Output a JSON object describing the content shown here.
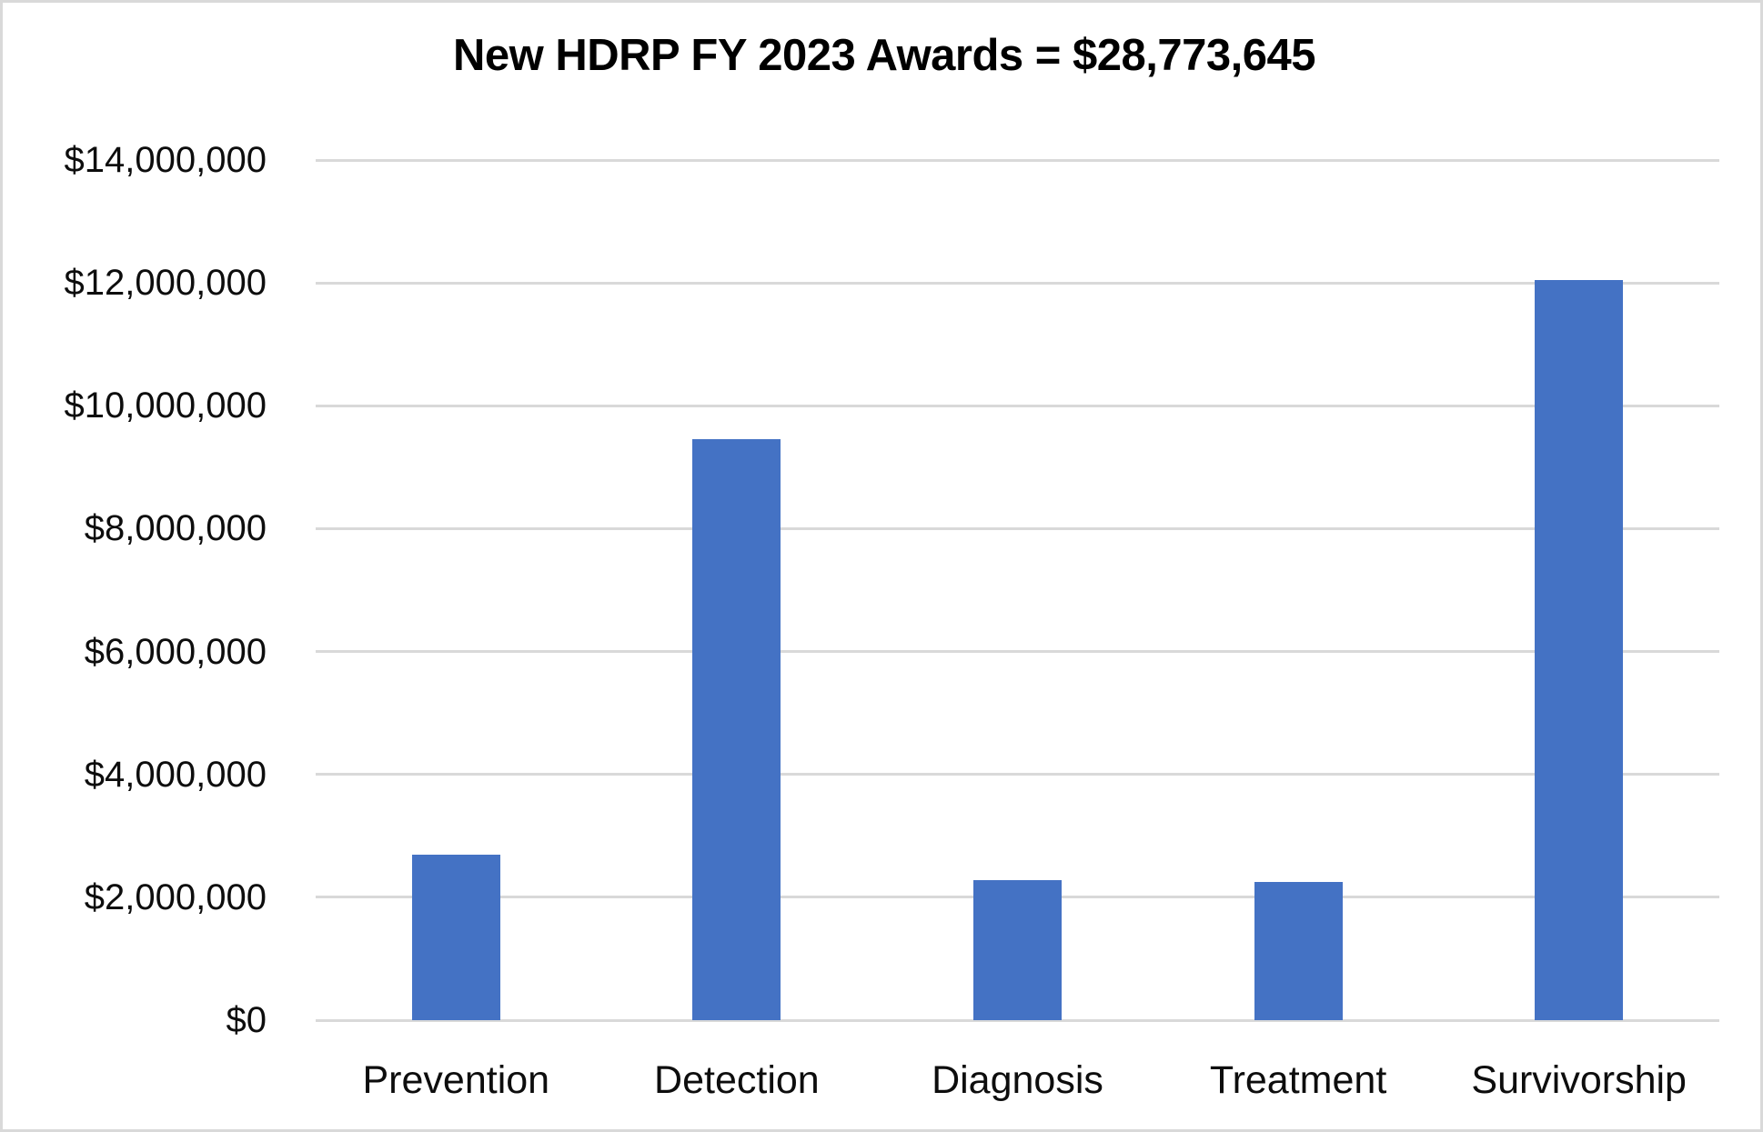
{
  "chart_data": {
    "type": "bar",
    "title": "New HDRP FY 2023 Awards = $28,773,645",
    "xlabel": "",
    "ylabel": "",
    "categories": [
      "Prevention",
      "Detection",
      "Diagnosis",
      "Treatment",
      "Survivorship"
    ],
    "values": [
      2700000,
      9450000,
      2280000,
      2250000,
      12050000
    ],
    "ylim": [
      0,
      14000000
    ],
    "ytick_interval": 2000000,
    "y_ticks": [
      {
        "value": 0,
        "label": "$0"
      },
      {
        "value": 2000000,
        "label": "$2,000,000"
      },
      {
        "value": 4000000,
        "label": "$4,000,000"
      },
      {
        "value": 6000000,
        "label": "$6,000,000"
      },
      {
        "value": 8000000,
        "label": "$8,000,000"
      },
      {
        "value": 10000000,
        "label": "$10,000,000"
      },
      {
        "value": 12000000,
        "label": "$12,000,000"
      },
      {
        "value": 14000000,
        "label": "$14,000,000"
      }
    ],
    "grid": true,
    "legend": false,
    "data_labels": false,
    "colors": {
      "bar": "#4472C4",
      "gridline": "#D9D9D9",
      "frame_border": "#D9D9D9",
      "text": "#000000",
      "background": "#FFFFFF"
    }
  }
}
